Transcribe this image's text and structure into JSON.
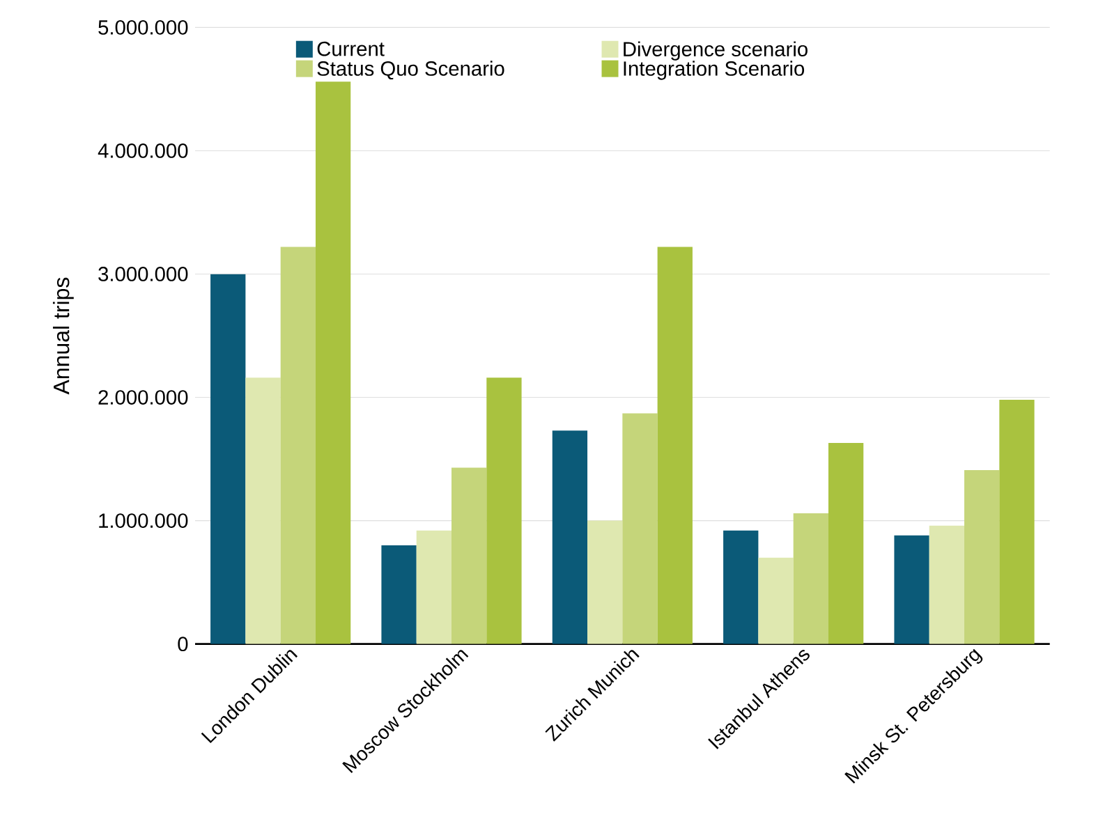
{
  "chart_data": {
    "type": "bar",
    "ylabel": "Annual trips",
    "categories": [
      "London Dublin",
      "Moscow Stockholm",
      "Zurich Munich",
      "Istanbul Athens",
      "Minsk St. Petersburg"
    ],
    "series": [
      {
        "name": "Current",
        "color": "#0b5a78",
        "values": [
          3000000,
          800000,
          1730000,
          920000,
          880000
        ]
      },
      {
        "name": "Divergence scenario",
        "color": "#dfe8b0",
        "values": [
          2160000,
          920000,
          1000000,
          700000,
          960000
        ]
      },
      {
        "name": "Status Quo Scenario",
        "color": "#c5d57a",
        "values": [
          3220000,
          1430000,
          1870000,
          1060000,
          1410000
        ]
      },
      {
        "name": "Integration Scenario",
        "color": "#a9c23f",
        "values": [
          4560000,
          2160000,
          3220000,
          1630000,
          1980000
        ]
      }
    ],
    "ylim": [
      0,
      5000000
    ],
    "yticks": [
      {
        "value": 0,
        "label": "0"
      },
      {
        "value": 1000000,
        "label": "1.000.000"
      },
      {
        "value": 2000000,
        "label": "2.000.000"
      },
      {
        "value": 3000000,
        "label": "3.000.000"
      },
      {
        "value": 4000000,
        "label": "4.000.000"
      },
      {
        "value": 5000000,
        "label": "5.000.000"
      }
    ],
    "grid": "y",
    "legend": "top"
  }
}
